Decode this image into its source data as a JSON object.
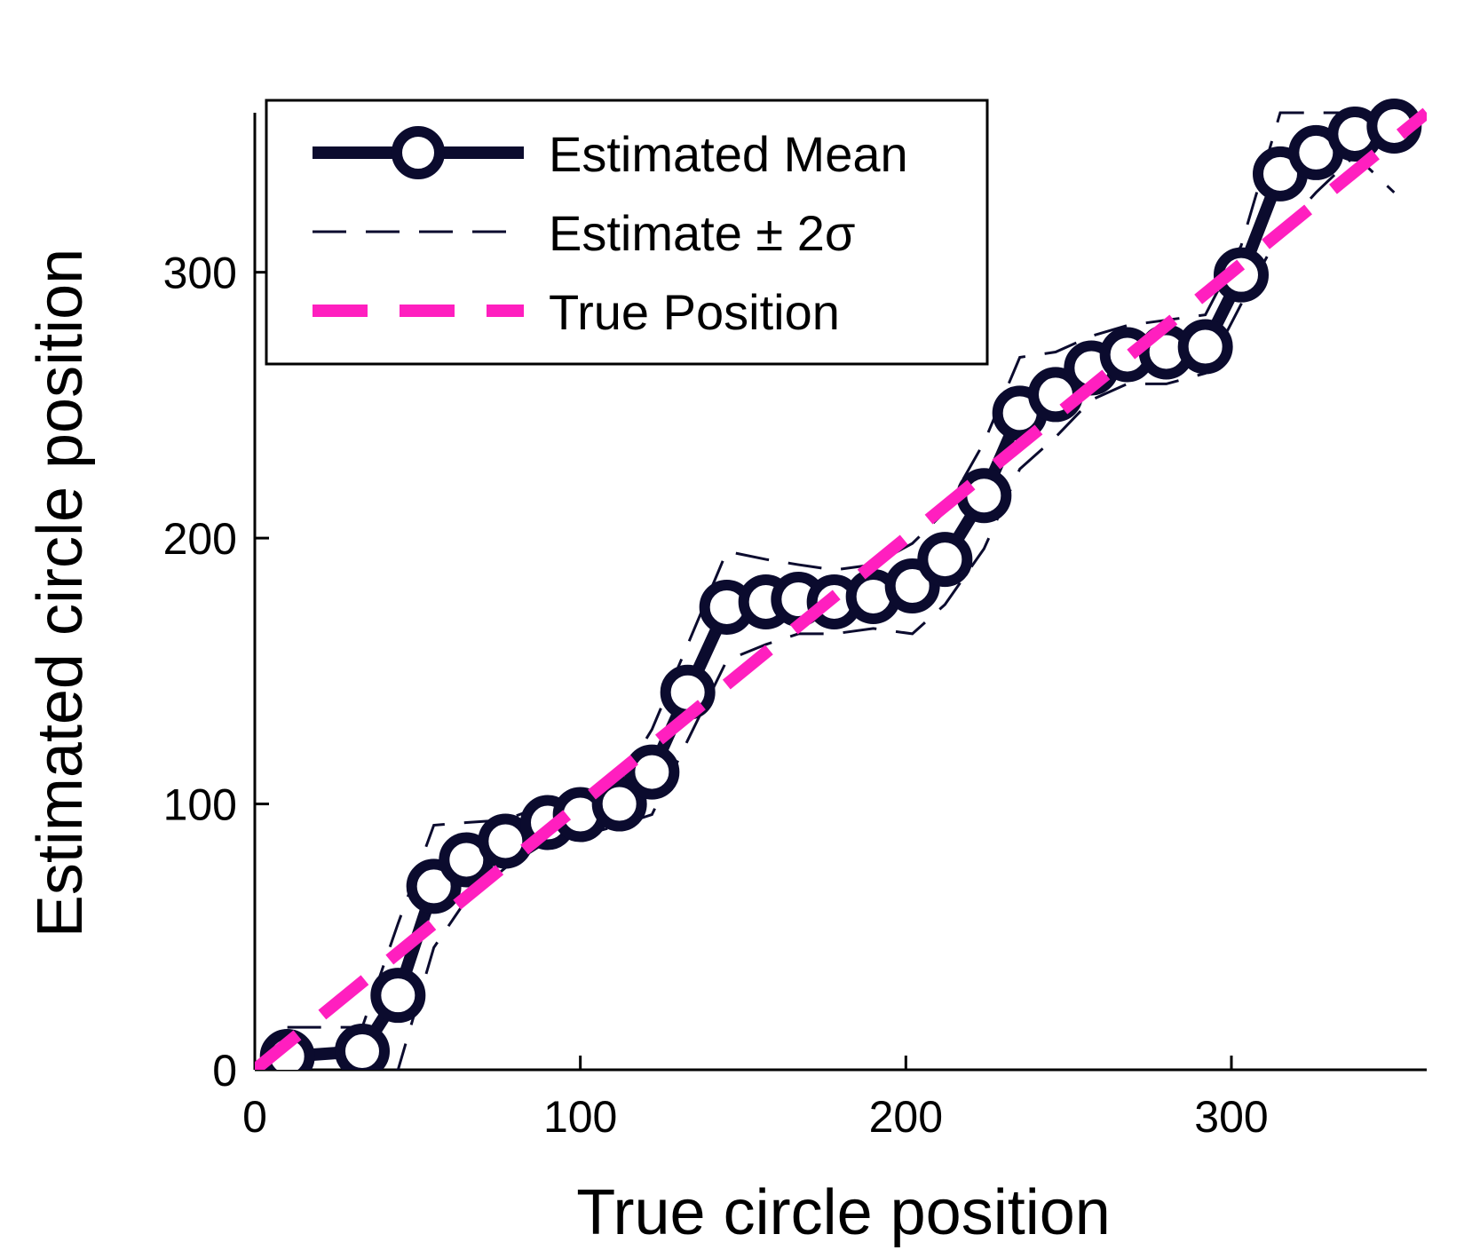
{
  "chart_data": {
    "type": "line",
    "title": "",
    "xlabel": "True circle position",
    "ylabel": "Estimated circle position",
    "xlim": [
      0,
      360
    ],
    "ylim": [
      0,
      360
    ],
    "xticks": [
      0,
      100,
      200,
      300
    ],
    "yticks": [
      0,
      100,
      200,
      300
    ],
    "grid": false,
    "legend_position": "top-left",
    "x": [
      10,
      33,
      44,
      55,
      65,
      77,
      90,
      100,
      112,
      122,
      133,
      145,
      157,
      167,
      178,
      190,
      202,
      212,
      224,
      235,
      246,
      257,
      268,
      280,
      292,
      303,
      315,
      326,
      338,
      350
    ],
    "series": [
      {
        "name": "Estimated Mean",
        "color": "#0b0b2e",
        "style": "solid-circle-markers",
        "values": [
          5,
          7,
          28,
          69,
          79,
          86,
          93,
          96,
          100,
          112,
          142,
          174,
          176,
          177,
          176,
          178,
          182,
          192,
          216,
          247,
          254,
          264,
          269,
          270,
          272,
          299,
          337,
          345,
          352,
          355
        ]
      },
      {
        "name": "Estimate ± 2σ",
        "color": "#0b0b2e",
        "style": "thin-dash",
        "upper": [
          16,
          16,
          55,
          92,
          93,
          94,
          100,
          104,
          108,
          128,
          160,
          195,
          192,
          190,
          188,
          190,
          198,
          210,
          236,
          268,
          270,
          276,
          280,
          282,
          284,
          310,
          360,
          360,
          360,
          360
        ],
        "lower": [
          -5,
          -5,
          0,
          46,
          64,
          76,
          86,
          88,
          92,
          96,
          124,
          154,
          160,
          164,
          164,
          166,
          164,
          175,
          196,
          226,
          238,
          252,
          258,
          258,
          262,
          288,
          315,
          330,
          344,
          330
        ]
      },
      {
        "name": "True Position",
        "color": "#ff1fbf",
        "style": "thick-dash",
        "x": [
          0,
          360
        ],
        "values": [
          0,
          360
        ]
      }
    ]
  }
}
